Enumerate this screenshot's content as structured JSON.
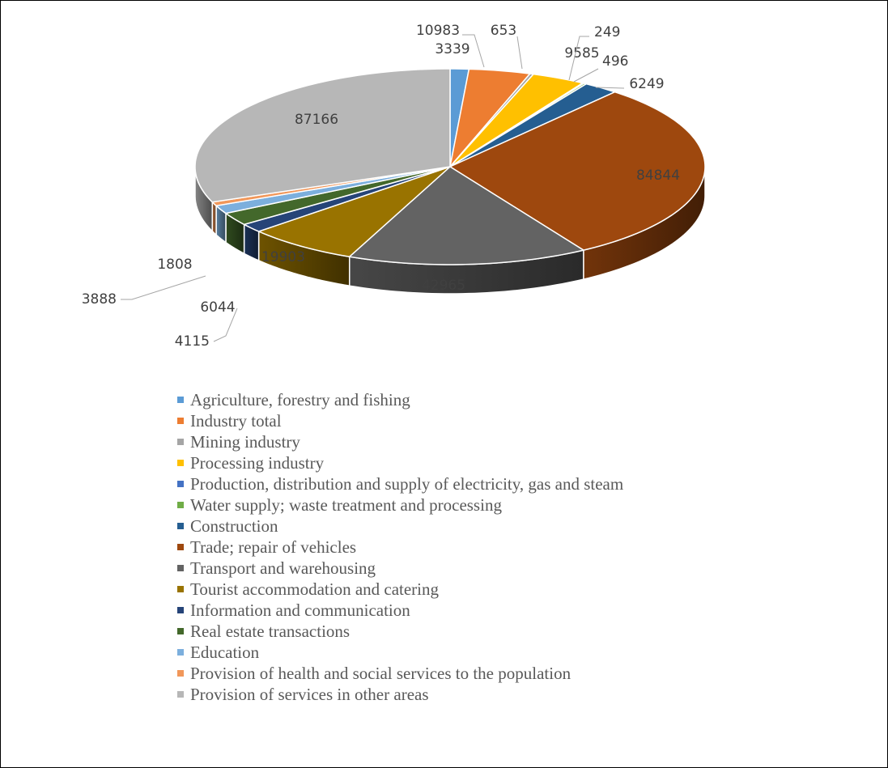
{
  "chart_data": {
    "type": "pie",
    "style": "3d",
    "title": "",
    "legend_position": "bottom",
    "slices": [
      {
        "label": "Agriculture, forestry and fishing",
        "value": 3339,
        "color": "#5b9bd5"
      },
      {
        "label": "Industry total",
        "value": 10983,
        "color": "#ed7d31"
      },
      {
        "label": "Mining industry",
        "value": 653,
        "color": "#a5a5a5"
      },
      {
        "label": "Processing industry",
        "value": 9585,
        "color": "#ffc000"
      },
      {
        "label": "Production, distribution and supply of electricity, gas and steam",
        "value": 249,
        "color": "#4472c4"
      },
      {
        "label": "Water supply; waste treatment and processing",
        "value": 496,
        "color": "#70ad47"
      },
      {
        "label": "Construction",
        "value": 6249,
        "color": "#255e91"
      },
      {
        "label": "Trade; repair of vehicles",
        "value": 84844,
        "color": "#9e480e"
      },
      {
        "label": "Transport and warehousing",
        "value": 42965,
        "color": "#636363"
      },
      {
        "label": "Tourist accommodation and catering",
        "value": 19903,
        "color": "#997300"
      },
      {
        "label": "Information and communication",
        "value": 4115,
        "color": "#264478"
      },
      {
        "label": "Real estate transactions",
        "value": 6044,
        "color": "#43682b"
      },
      {
        "label": "Education",
        "value": 3888,
        "color": "#7cafdd"
      },
      {
        "label": "Provision of health and social services to the population",
        "value": 1808,
        "color": "#f1975a"
      },
      {
        "label": "Provision of services in other areas",
        "value": 87166,
        "color": "#b7b7b7"
      }
    ]
  }
}
